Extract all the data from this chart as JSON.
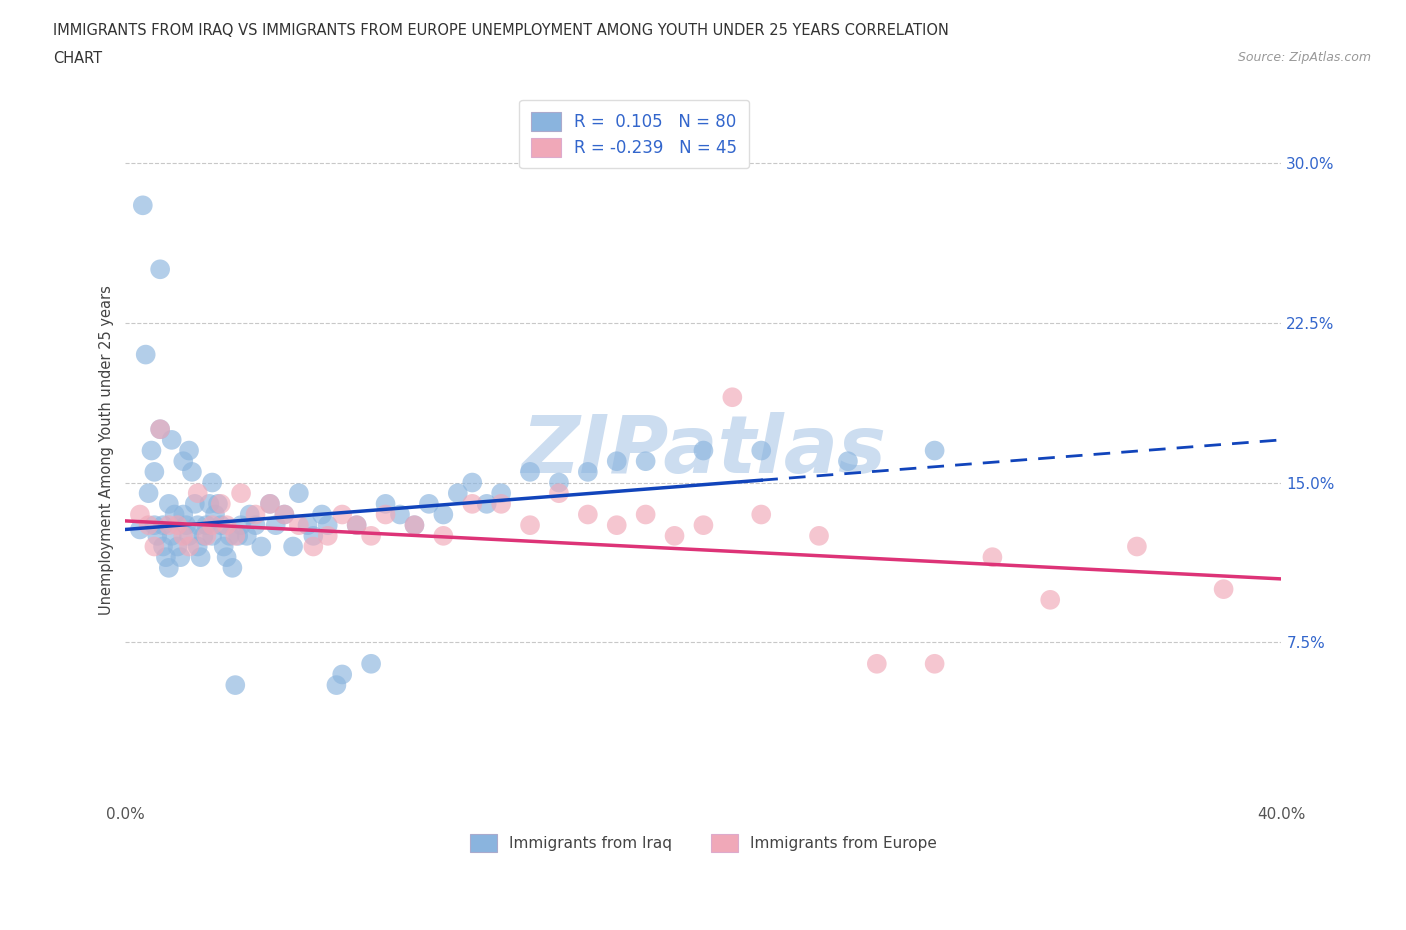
{
  "title_line1": "IMMIGRANTS FROM IRAQ VS IMMIGRANTS FROM EUROPE UNEMPLOYMENT AMONG YOUTH UNDER 25 YEARS CORRELATION",
  "title_line2": "CHART",
  "source_text": "Source: ZipAtlas.com",
  "ylabel": "Unemployment Among Youth under 25 years",
  "xlim": [
    0.0,
    0.4
  ],
  "ylim": [
    0.0,
    0.33
  ],
  "ytick_values": [
    0.0,
    0.075,
    0.15,
    0.225,
    0.3
  ],
  "ytick_labels": [
    "",
    "7.5%",
    "15.0%",
    "22.5%",
    "30.0%"
  ],
  "grid_color": "#c8c8c8",
  "background_color": "#ffffff",
  "watermark_text": "ZIPatlas",
  "watermark_color": "#ccddf0",
  "legend_r1": "R =  0.105   N = 80",
  "legend_r2": "R = -0.239   N = 45",
  "legend_color": "#3366cc",
  "blue_color": "#8ab4de",
  "pink_color": "#f0a8b8",
  "trendline_blue": "#1144bb",
  "trendline_pink": "#dd3377",
  "series1_label": "Immigrants from Iraq",
  "series2_label": "Immigrants from Europe",
  "blue_intercept": 0.128,
  "blue_slope": 0.105,
  "pink_intercept": 0.132,
  "pink_slope": -0.068,
  "iraq_x": [
    0.005,
    0.006,
    0.007,
    0.008,
    0.009,
    0.01,
    0.01,
    0.011,
    0.012,
    0.012,
    0.013,
    0.013,
    0.014,
    0.015,
    0.015,
    0.016,
    0.016,
    0.017,
    0.018,
    0.019,
    0.02,
    0.02,
    0.021,
    0.022,
    0.022,
    0.023,
    0.024,
    0.025,
    0.025,
    0.026,
    0.027,
    0.028,
    0.029,
    0.03,
    0.03,
    0.031,
    0.032,
    0.033,
    0.034,
    0.035,
    0.036,
    0.037,
    0.038,
    0.039,
    0.04,
    0.042,
    0.043,
    0.045,
    0.047,
    0.05,
    0.052,
    0.055,
    0.058,
    0.06,
    0.063,
    0.065,
    0.068,
    0.07,
    0.073,
    0.075,
    0.08,
    0.085,
    0.09,
    0.095,
    0.1,
    0.105,
    0.11,
    0.115,
    0.12,
    0.125,
    0.13,
    0.14,
    0.15,
    0.16,
    0.17,
    0.18,
    0.2,
    0.22,
    0.25,
    0.28
  ],
  "iraq_y": [
    0.128,
    0.28,
    0.21,
    0.145,
    0.165,
    0.155,
    0.13,
    0.125,
    0.175,
    0.25,
    0.13,
    0.12,
    0.115,
    0.14,
    0.11,
    0.125,
    0.17,
    0.135,
    0.12,
    0.115,
    0.135,
    0.16,
    0.13,
    0.125,
    0.165,
    0.155,
    0.14,
    0.13,
    0.12,
    0.115,
    0.125,
    0.13,
    0.14,
    0.15,
    0.125,
    0.135,
    0.14,
    0.13,
    0.12,
    0.115,
    0.125,
    0.11,
    0.055,
    0.125,
    0.13,
    0.125,
    0.135,
    0.13,
    0.12,
    0.14,
    0.13,
    0.135,
    0.12,
    0.145,
    0.13,
    0.125,
    0.135,
    0.13,
    0.055,
    0.06,
    0.13,
    0.065,
    0.14,
    0.135,
    0.13,
    0.14,
    0.135,
    0.145,
    0.15,
    0.14,
    0.145,
    0.155,
    0.15,
    0.155,
    0.16,
    0.16,
    0.165,
    0.165,
    0.16,
    0.165
  ],
  "europe_x": [
    0.005,
    0.008,
    0.01,
    0.012,
    0.015,
    0.018,
    0.02,
    0.022,
    0.025,
    0.028,
    0.03,
    0.033,
    0.035,
    0.038,
    0.04,
    0.045,
    0.05,
    0.055,
    0.06,
    0.065,
    0.07,
    0.075,
    0.08,
    0.085,
    0.09,
    0.1,
    0.11,
    0.12,
    0.13,
    0.14,
    0.15,
    0.16,
    0.17,
    0.18,
    0.19,
    0.2,
    0.21,
    0.22,
    0.24,
    0.26,
    0.28,
    0.3,
    0.32,
    0.35,
    0.38
  ],
  "europe_y": [
    0.135,
    0.13,
    0.12,
    0.175,
    0.13,
    0.13,
    0.125,
    0.12,
    0.145,
    0.125,
    0.13,
    0.14,
    0.13,
    0.125,
    0.145,
    0.135,
    0.14,
    0.135,
    0.13,
    0.12,
    0.125,
    0.135,
    0.13,
    0.125,
    0.135,
    0.13,
    0.125,
    0.14,
    0.14,
    0.13,
    0.145,
    0.135,
    0.13,
    0.135,
    0.125,
    0.13,
    0.19,
    0.135,
    0.125,
    0.065,
    0.065,
    0.115,
    0.095,
    0.12,
    0.1
  ]
}
